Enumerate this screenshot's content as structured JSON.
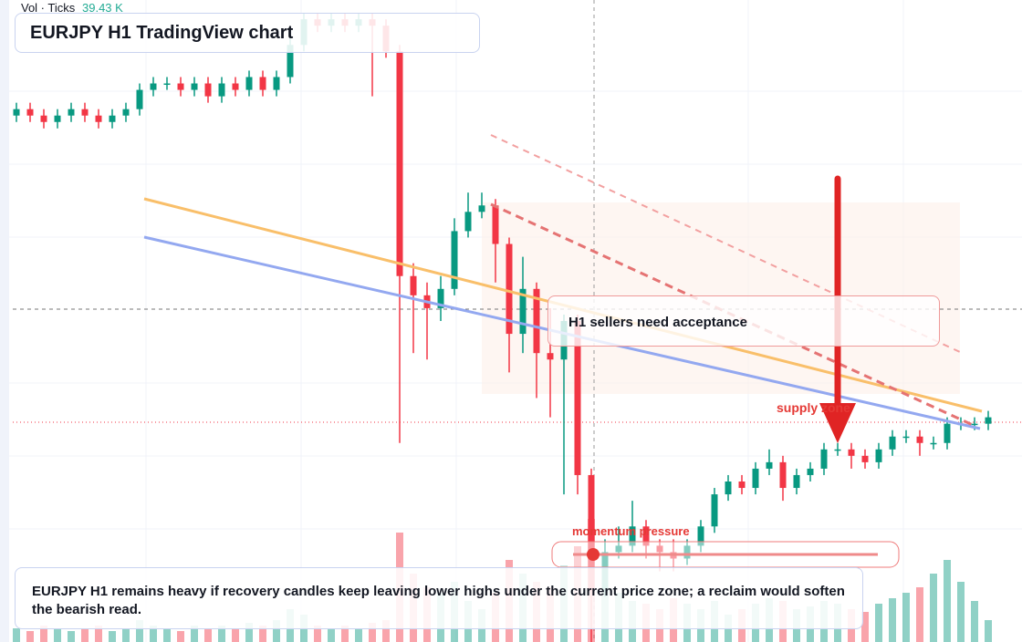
{
  "chart_data": {
    "type": "candlestick",
    "title": "EURJPY H1 TradingView chart",
    "volume_label": "Vol · Ticks",
    "volume_value": "39.43 K",
    "annotations": {
      "box": "H1 sellers need acceptance",
      "zone": "supply zone",
      "slider": "momentum pressure"
    },
    "note": "EURJPY H1 remains heavy if recovery candles keep leaving lower highs under the current price zone; a reclaim would soften the bearish read.",
    "up_color": "#089981",
    "down_color": "#f23645",
    "ylim": [
      0,
      100
    ],
    "volume_lim": [
      0,
      50
    ],
    "open": [
      82,
      83,
      82,
      81,
      82,
      83,
      82,
      81,
      82,
      83,
      86,
      87,
      87,
      86,
      87,
      85,
      87,
      86,
      88,
      86,
      88,
      93,
      97,
      96,
      97,
      96,
      97,
      96,
      92,
      57,
      54,
      52,
      55,
      64,
      67,
      68,
      62,
      48,
      55,
      45,
      44,
      50,
      26,
      8,
      14,
      15,
      18,
      15,
      14,
      13,
      15,
      18,
      23,
      25,
      24,
      27,
      28,
      24,
      26,
      27,
      30,
      30,
      29,
      28,
      30,
      32,
      32,
      31,
      31,
      34,
      34,
      34
    ],
    "high": [
      84,
      84,
      83,
      83,
      84,
      84,
      83,
      83,
      84,
      87,
      88,
      88,
      88,
      88,
      88,
      88,
      88,
      89,
      89,
      89,
      94,
      98,
      98,
      98,
      98,
      98,
      98,
      97,
      93,
      59,
      56,
      57,
      66,
      70,
      70,
      69,
      63,
      60,
      56,
      52,
      51,
      51,
      27,
      16,
      18,
      22,
      19,
      16,
      16,
      16,
      19,
      24,
      26,
      26,
      28,
      30,
      29,
      27,
      28,
      31,
      31,
      31,
      30,
      31,
      33,
      33,
      33,
      32,
      35,
      35,
      35,
      36
    ],
    "low": [
      81,
      81,
      80,
      80,
      81,
      81,
      80,
      80,
      81,
      82,
      85,
      86,
      85,
      85,
      84,
      84,
      85,
      85,
      85,
      85,
      87,
      92,
      95,
      95,
      95,
      95,
      85,
      91,
      31,
      45,
      44,
      50,
      54,
      63,
      66,
      56,
      42,
      45,
      38,
      35,
      23,
      23,
      0,
      7,
      13,
      14,
      13,
      11,
      11,
      12,
      14,
      17,
      22,
      23,
      23,
      26,
      22,
      23,
      25,
      26,
      29,
      27,
      27,
      27,
      29,
      31,
      29,
      30,
      30,
      33,
      33,
      33
    ],
    "close": [
      83,
      82,
      81,
      82,
      83,
      82,
      81,
      82,
      83,
      86,
      87,
      87,
      86,
      87,
      85,
      87,
      86,
      88,
      86,
      88,
      93,
      97,
      96,
      97,
      96,
      97,
      96,
      92,
      57,
      54,
      52,
      55,
      64,
      67,
      68,
      62,
      48,
      55,
      45,
      44,
      50,
      26,
      8,
      14,
      15,
      18,
      15,
      14,
      13,
      15,
      18,
      23,
      25,
      24,
      27,
      28,
      24,
      26,
      27,
      30,
      30,
      29,
      28,
      30,
      32,
      32,
      31,
      31,
      34,
      34,
      34,
      35
    ],
    "volume": [
      5,
      4,
      6,
      5,
      4,
      5,
      6,
      4,
      5,
      8,
      6,
      5,
      4,
      6,
      5,
      6,
      5,
      7,
      6,
      8,
      12,
      10,
      6,
      5,
      6,
      5,
      7,
      8,
      40,
      25,
      20,
      18,
      22,
      15,
      12,
      18,
      30,
      25,
      22,
      20,
      28,
      35,
      45,
      20,
      18,
      15,
      14,
      12,
      16,
      14,
      12,
      15,
      10,
      12,
      14,
      16,
      15,
      12,
      13,
      15,
      14,
      12,
      11,
      14,
      16,
      18,
      20,
      25,
      30,
      22,
      15,
      8
    ]
  }
}
